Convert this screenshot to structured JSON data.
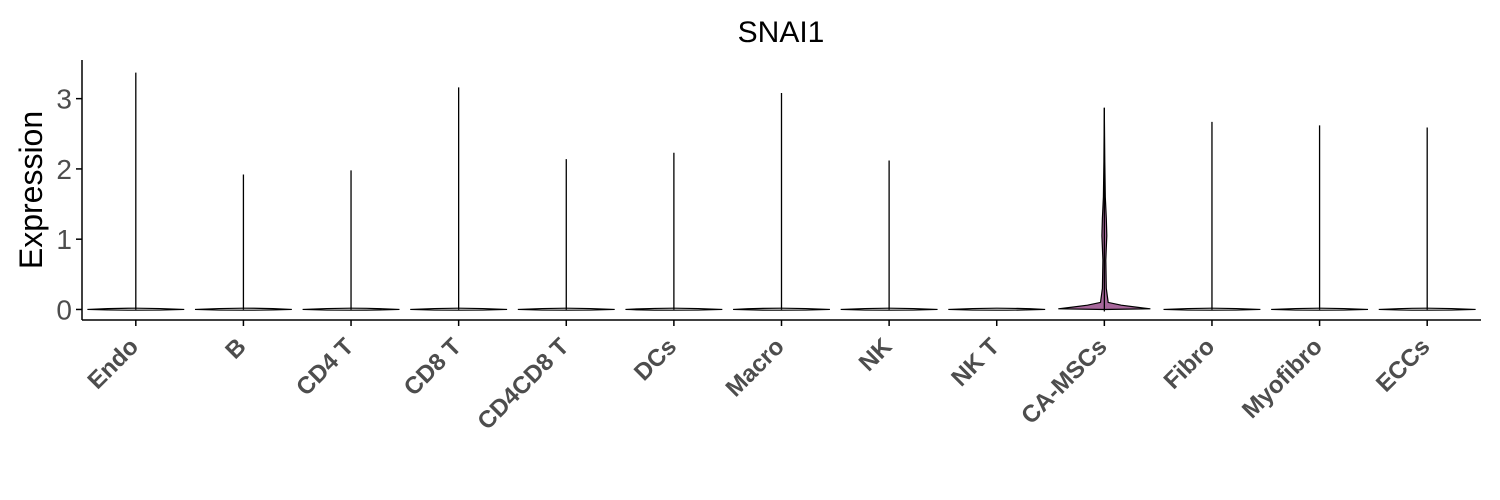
{
  "chart_data": {
    "type": "violin",
    "title": "SNAI1",
    "xlabel": "",
    "ylabel": "Expression",
    "ylim": [
      -0.15,
      3.55
    ],
    "yticks": [
      0,
      1,
      2,
      3
    ],
    "categories": [
      "Endo",
      "B",
      "CD4 T",
      "CD8 T",
      "CD4CD8 T",
      "DCs",
      "Macro",
      "NK",
      "NK T",
      "CA-MSCs",
      "Fibro",
      "Myofibro",
      "ECCs"
    ],
    "max_values": [
      3.37,
      1.92,
      1.98,
      3.16,
      2.14,
      2.23,
      3.08,
      2.12,
      0.0,
      2.87,
      2.67,
      2.62,
      2.59
    ],
    "colors": {
      "violin_fill": "#ffffff",
      "highlight_fill": "#a7679b",
      "line": "#000000",
      "tick_text": "#4d4d4d"
    },
    "highlighted_category": "CA-MSCs",
    "grid": false,
    "legend": "none"
  }
}
